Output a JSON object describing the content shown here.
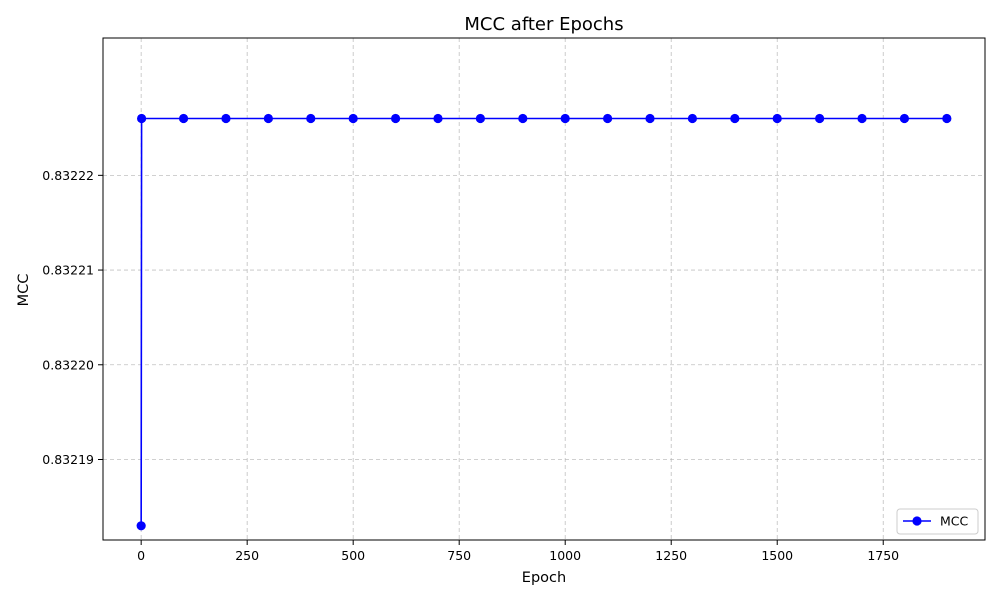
{
  "chart_data": {
    "type": "line",
    "title": "MCC after Epochs",
    "xlabel": "Epoch",
    "ylabel": "MCC",
    "xlim": [
      -90,
      1990
    ],
    "ylim": [
      0.8321815,
      0.8322345
    ],
    "xticks": [
      0,
      250,
      500,
      750,
      1000,
      1250,
      1500,
      1750
    ],
    "yticks": [
      0.83219,
      0.8322,
      0.83221,
      0.83222
    ],
    "xtick_labels": [
      "0",
      "250",
      "500",
      "750",
      "1000",
      "1250",
      "1500",
      "1750"
    ],
    "ytick_labels": [
      "0.83219",
      "0.83220",
      "0.83221",
      "0.83222"
    ],
    "grid": true,
    "legend_position": "lower-right",
    "colors": {
      "line": "#0000ff",
      "grid": "#b0b0b0",
      "frame": "#000000"
    },
    "series": [
      {
        "name": "MCC",
        "x": [
          0,
          1,
          100,
          200,
          300,
          400,
          500,
          600,
          700,
          800,
          900,
          1000,
          1100,
          1200,
          1300,
          1400,
          1500,
          1600,
          1700,
          1800,
          1900
        ],
        "y": [
          0.832183,
          0.832226,
          0.832226,
          0.832226,
          0.832226,
          0.832226,
          0.832226,
          0.832226,
          0.832226,
          0.832226,
          0.832226,
          0.832226,
          0.832226,
          0.832226,
          0.832226,
          0.832226,
          0.832226,
          0.832226,
          0.832226,
          0.832226,
          0.832226
        ]
      }
    ]
  }
}
